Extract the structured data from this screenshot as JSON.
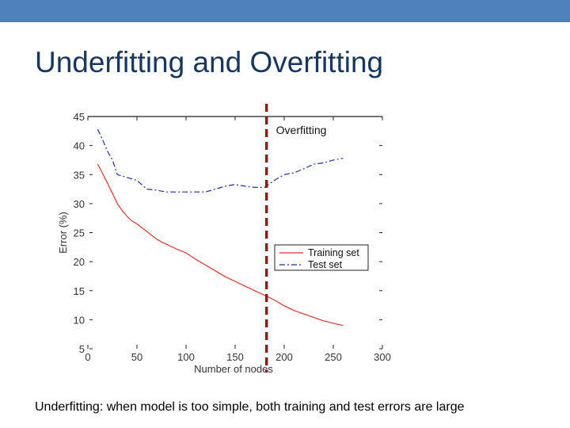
{
  "slide": {
    "title": "Underfitting and Overfitting",
    "caption": "Underfitting: when model is too simple, both training and test errors are large",
    "accent_color": "#4f81bd",
    "title_color": "#17375e"
  },
  "chart_data": {
    "type": "line",
    "xlabel": "Number of nodes",
    "ylabel": "Error (%)",
    "xlim": [
      0,
      300
    ],
    "ylim": [
      5,
      45
    ],
    "xticks": [
      0,
      50,
      100,
      150,
      200,
      250,
      300
    ],
    "yticks": [
      5,
      10,
      15,
      20,
      25,
      30,
      35,
      40,
      45
    ],
    "grid": false,
    "legend_position": "right-middle",
    "annotation": {
      "label": "Overfitting",
      "x": 182,
      "color": "#8b1a1a"
    },
    "series": [
      {
        "name": "Training set",
        "color": "#e03030",
        "style": "solid",
        "x": [
          10,
          15,
          20,
          25,
          30,
          35,
          40,
          45,
          50,
          60,
          70,
          75,
          80,
          90,
          100,
          110,
          120,
          130,
          140,
          150,
          160,
          170,
          180,
          190,
          200,
          210,
          220,
          230,
          240,
          250,
          260
        ],
        "y": [
          36.8,
          35.2,
          33.5,
          31.8,
          30.0,
          28.8,
          27.8,
          27.0,
          26.5,
          25.2,
          23.9,
          23.4,
          23.0,
          22.2,
          21.5,
          20.4,
          19.4,
          18.4,
          17.4,
          16.6,
          15.8,
          15.0,
          14.2,
          13.4,
          12.4,
          11.6,
          11.0,
          10.4,
          9.8,
          9.4,
          9.0
        ]
      },
      {
        "name": "Test set",
        "color": "#1f2f9e",
        "style": "dash-dot",
        "x": [
          10,
          15,
          20,
          25,
          30,
          40,
          50,
          60,
          70,
          80,
          90,
          100,
          110,
          120,
          130,
          140,
          150,
          160,
          170,
          180,
          190,
          200,
          210,
          220,
          230,
          240,
          250,
          260
        ],
        "y": [
          42.8,
          41.0,
          39.0,
          37.5,
          35.0,
          34.5,
          34.0,
          32.5,
          32.3,
          32.0,
          32.0,
          32.0,
          32.0,
          32.0,
          32.5,
          33.0,
          33.3,
          33.0,
          32.8,
          32.8,
          34.0,
          35.0,
          35.3,
          36.0,
          36.8,
          37.0,
          37.5,
          37.8
        ]
      }
    ]
  }
}
